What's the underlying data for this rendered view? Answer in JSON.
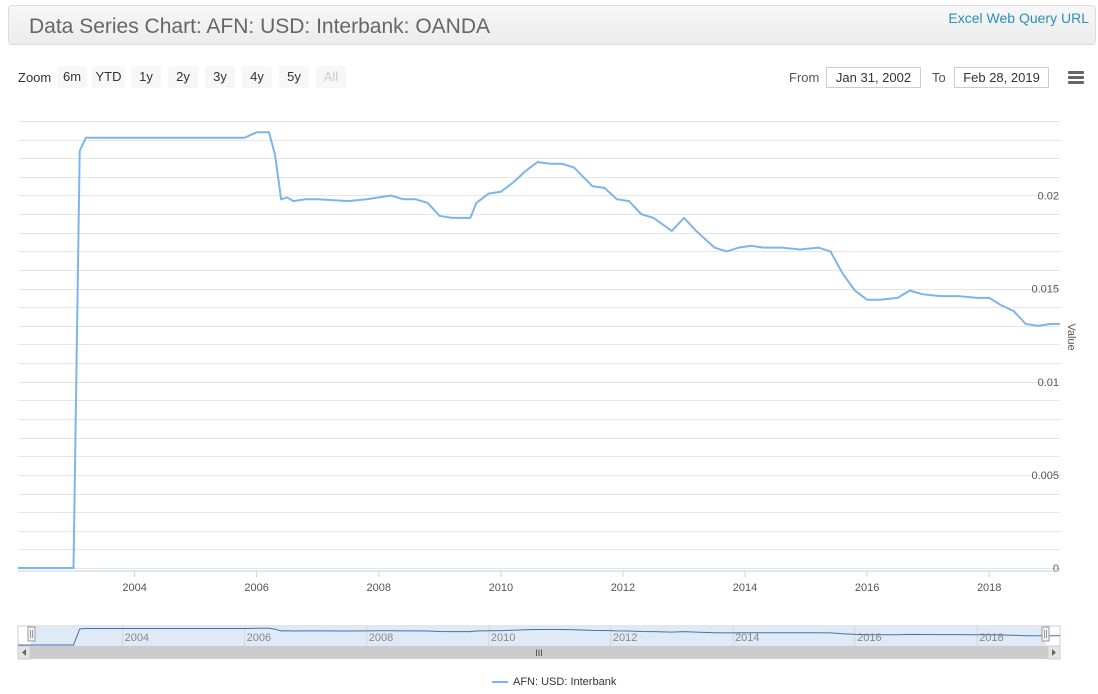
{
  "header": {
    "title": "Data Series Chart: AFN: USD: Interbank: OANDA",
    "excel_link": "Excel Web Query URL"
  },
  "zoom": {
    "label": "Zoom",
    "buttons": [
      "6m",
      "YTD",
      "1y",
      "2y",
      "3y",
      "4y",
      "5y",
      "All"
    ],
    "disabled": "All"
  },
  "range": {
    "from_label": "From",
    "from_value": "Jan 31, 2002",
    "to_label": "To",
    "to_value": "Feb 28, 2019"
  },
  "menu": {
    "icon": "hamburger-menu-icon"
  },
  "navigator": {
    "scrollbar_grip": "III"
  },
  "colors": {
    "series": "#7cb5ec",
    "grid": "#e6e6e6",
    "navigator_mask": "#dbe8f5"
  },
  "chart_data": {
    "type": "line",
    "title": "Data Series Chart: AFN: USD: Interbank: OANDA",
    "xlabel": "",
    "ylabel": "Value",
    "xlim": [
      2002.09,
      2019.16
    ],
    "ylim": [
      0,
      0.024
    ],
    "y_ticks": [
      "0",
      "0.005",
      "0.01",
      "0.015",
      "0.02"
    ],
    "x_ticks": [
      "2004",
      "2006",
      "2008",
      "2010",
      "2012",
      "2014",
      "2016",
      "2018"
    ],
    "grid": true,
    "legend_position": "bottom-center",
    "series": [
      {
        "name": "AFN: USD: Interbank",
        "x": [
          2002.09,
          2003.0,
          2003.1,
          2003.2,
          2003.5,
          2004.0,
          2005.0,
          2005.8,
          2006.0,
          2006.2,
          2006.3,
          2006.4,
          2006.5,
          2006.6,
          2006.8,
          2007.0,
          2007.5,
          2007.8,
          2008.0,
          2008.2,
          2008.4,
          2008.6,
          2008.8,
          2009.0,
          2009.2,
          2009.5,
          2009.6,
          2009.8,
          2010.0,
          2010.2,
          2010.4,
          2010.6,
          2010.8,
          2011.0,
          2011.2,
          2011.5,
          2011.7,
          2011.9,
          2012.1,
          2012.3,
          2012.5,
          2012.8,
          2013.0,
          2013.2,
          2013.5,
          2013.7,
          2013.9,
          2014.1,
          2014.3,
          2014.6,
          2014.9,
          2015.2,
          2015.4,
          2015.6,
          2015.8,
          2016.0,
          2016.2,
          2016.5,
          2016.7,
          2016.9,
          2017.2,
          2017.5,
          2017.8,
          2018.0,
          2018.2,
          2018.4,
          2018.6,
          2018.8,
          2019.0,
          2019.16
        ],
        "y": [
          0,
          0,
          0.0224,
          0.0231,
          0.0231,
          0.0231,
          0.0231,
          0.0231,
          0.0234,
          0.0234,
          0.0222,
          0.0198,
          0.0199,
          0.0197,
          0.0198,
          0.0198,
          0.0197,
          0.0198,
          0.0199,
          0.02,
          0.0198,
          0.0198,
          0.0196,
          0.0189,
          0.0188,
          0.0188,
          0.0196,
          0.0201,
          0.0202,
          0.0207,
          0.0213,
          0.0218,
          0.0217,
          0.0217,
          0.0215,
          0.0205,
          0.0204,
          0.0198,
          0.0197,
          0.019,
          0.0188,
          0.0181,
          0.0188,
          0.0181,
          0.0172,
          0.017,
          0.0172,
          0.0173,
          0.0172,
          0.0172,
          0.0171,
          0.0172,
          0.017,
          0.0158,
          0.0149,
          0.0144,
          0.0144,
          0.0145,
          0.0149,
          0.0147,
          0.0146,
          0.0146,
          0.0145,
          0.0145,
          0.0141,
          0.0138,
          0.0131,
          0.013,
          0.0131,
          0.0131
        ]
      }
    ]
  }
}
